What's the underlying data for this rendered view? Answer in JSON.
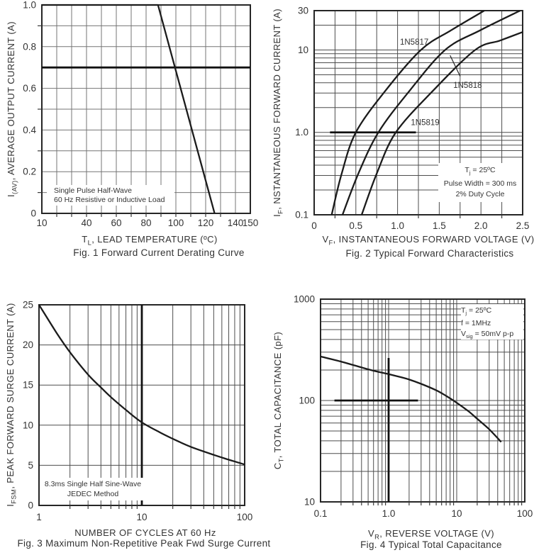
{
  "page": {
    "colors": {
      "background": "#ffffff",
      "curve": "#1b1b1b",
      "border": "#262626",
      "grid_dark": "#4d4d4d",
      "grid_light": "#757575",
      "text": "#333333",
      "emphasis": "#111111"
    }
  },
  "chart_data": [
    {
      "id": "fig1",
      "type": "line",
      "title": "Fig. 1  Forward Current Derating Curve",
      "xlabel": "T_{L}, LEAD TEMPERATURE (ºC)",
      "ylabel": "I_{(AV)}, AVERAGE OUTPUT CURRENT (A)",
      "x_scale": "linear",
      "xlim": [
        10,
        150
      ],
      "y_scale": "linear",
      "ylim": [
        0,
        1.0
      ],
      "x_ticks": [
        [
          10,
          "10"
        ],
        [
          40,
          "40"
        ],
        [
          60,
          "60"
        ],
        [
          80,
          "80"
        ],
        [
          100,
          "100"
        ],
        [
          120,
          "120"
        ],
        [
          140,
          "140"
        ],
        [
          150,
          "150"
        ]
      ],
      "y_ticks": [
        [
          0,
          "0"
        ],
        [
          0.2,
          "0.2"
        ],
        [
          0.4,
          "0.4"
        ],
        [
          0.6,
          "0.6"
        ],
        [
          0.8,
          "0.8"
        ],
        [
          1.0,
          "1.0"
        ]
      ],
      "x_grid": [
        20,
        30,
        40,
        50,
        60,
        70,
        80,
        90,
        100,
        110,
        120,
        130,
        140
      ],
      "y_grid": [
        0.1,
        0.2,
        0.3,
        0.4,
        0.5,
        0.6,
        0.7,
        0.8,
        0.9
      ],
      "x_minor_ticks": [
        20,
        30,
        40,
        50,
        60,
        70,
        80,
        90,
        100,
        110,
        120,
        130
      ],
      "y_minor_ticks": [
        0.1,
        0.3,
        0.5,
        0.9
      ],
      "grid_shade": "light",
      "series": [
        {
          "name": "derating-curve",
          "smooth": false,
          "points": [
            [
              10,
              1.0
            ],
            [
              88,
              1.0
            ],
            [
              126,
              0
            ]
          ]
        }
      ],
      "emphasis": [
        {
          "dir": "h",
          "at": 0.7,
          "span": [
            10,
            150
          ]
        }
      ],
      "note": {
        "lines": [
          "Single Pulse Half-Wave",
          "60 Hz Resistive or Inductive Load"
        ]
      }
    },
    {
      "id": "fig2",
      "type": "line",
      "title": "Fig. 2  Typical Forward Characteristics",
      "xlabel": "V_{F}, INSTANTANEOUS FORWARD VOLTAGE (V)",
      "ylabel": "I_{F}, NSTANTANEOUS FORWARD CURRENT (A)",
      "x_scale": "linear",
      "xlim": [
        0,
        2.5
      ],
      "y_scale": "log",
      "ylim": [
        0.1,
        30
      ],
      "x_ticks": [
        [
          0,
          "0"
        ],
        [
          0.5,
          "0.5"
        ],
        [
          1.0,
          "1.0"
        ],
        [
          1.5,
          "1.5"
        ],
        [
          2.0,
          "2.0"
        ],
        [
          2.5,
          "2.5"
        ]
      ],
      "y_ticks": [
        [
          30,
          "30"
        ],
        [
          10,
          "10"
        ],
        [
          1.0,
          "1.0"
        ],
        [
          0.1,
          "0.1"
        ]
      ],
      "x_grid": [
        0.25,
        0.5,
        0.75,
        1.0,
        1.25,
        1.5,
        1.75,
        2.0,
        2.25
      ],
      "y_grid": [
        0.2,
        0.3,
        0.4,
        0.5,
        0.6,
        0.7,
        0.8,
        0.9,
        1,
        2,
        3,
        4,
        5,
        6,
        7,
        8,
        9,
        10,
        20
      ],
      "x_minor_ticks": [
        0.25,
        0.75,
        1.25,
        1.75,
        2.25
      ],
      "y_minor_ticks": [],
      "grid_shade": "dark",
      "series": [
        {
          "name": "1N5817",
          "points": [
            [
              0.21,
              0.1
            ],
            [
              0.33,
              0.316
            ],
            [
              0.5,
              1.0
            ],
            [
              0.85,
              3.16
            ],
            [
              1.28,
              10
            ],
            [
              1.64,
              17.3
            ],
            [
              2.04,
              30
            ]
          ]
        },
        {
          "name": "1N5818",
          "points": [
            [
              0.34,
              0.1
            ],
            [
              0.53,
              0.316
            ],
            [
              0.77,
              1.0
            ],
            [
              1.14,
              3.16
            ],
            [
              1.57,
              10
            ],
            [
              1.99,
              17.3
            ],
            [
              2.47,
              30
            ]
          ]
        },
        {
          "name": "1N5819",
          "points": [
            [
              0.57,
              0.1
            ],
            [
              0.75,
              0.316
            ],
            [
              0.98,
              1.0
            ],
            [
              1.42,
              3.16
            ],
            [
              1.93,
              10
            ],
            [
              2.23,
              13
            ],
            [
              2.5,
              16.5
            ]
          ]
        }
      ],
      "labels": [
        {
          "text": "1N5817",
          "at": [
            1.2,
            12.5
          ],
          "anchor": "middle"
        },
        {
          "text": "1N5818",
          "at": [
            1.84,
            3.75
          ],
          "anchor": "middle",
          "leader": [
            [
              1.63,
              8.6
            ],
            [
              1.75,
              4.8
            ]
          ]
        },
        {
          "text": "1N5819",
          "at": [
            1.16,
            1.33
          ],
          "anchor": "start"
        }
      ],
      "emphasis": [
        {
          "dir": "h",
          "at": 1.0,
          "span": [
            0.19,
            1.22
          ]
        }
      ],
      "note": {
        "lines": [
          "T_{j} = 25ºC",
          "Pulse Width = 300 ms",
          "2% Duty Cycle"
        ]
      }
    },
    {
      "id": "fig3",
      "type": "line",
      "title": "Fig. 3  Maximum Non-Repetitive Peak Fwd Surge Current",
      "xlabel": "NUMBER OF CYCLES AT 60 Hz",
      "ylabel": "I_{FSM}, PEAK FORWARD SURGE CURRENT (A)",
      "x_scale": "log",
      "xlim": [
        1,
        100
      ],
      "y_scale": "linear",
      "ylim": [
        0,
        25
      ],
      "x_ticks": [
        [
          1,
          "1"
        ],
        [
          10,
          "10"
        ],
        [
          100,
          "100"
        ]
      ],
      "y_ticks": [
        [
          0,
          "0"
        ],
        [
          5,
          "5"
        ],
        [
          10,
          "10"
        ],
        [
          15,
          "15"
        ],
        [
          20,
          "20"
        ],
        [
          25,
          "25"
        ]
      ],
      "x_grid": [
        2,
        3,
        4,
        5,
        6,
        7,
        8,
        9,
        10,
        20,
        30,
        40,
        50,
        60,
        70,
        80,
        90
      ],
      "y_grid": [
        5,
        10,
        15,
        20
      ],
      "x_minor_ticks": [
        2,
        3,
        4,
        5,
        6,
        7,
        8,
        9,
        20,
        30,
        40,
        50,
        60,
        70,
        80,
        90
      ],
      "y_minor_ticks": [],
      "grid_shade": "dark",
      "series": [
        {
          "name": "surge-current",
          "points": [
            [
              1,
              25
            ],
            [
              1.5,
              21.4
            ],
            [
              2,
              19.1
            ],
            [
              3,
              16.3
            ],
            [
              4,
              14.7
            ],
            [
              5,
              13.5
            ],
            [
              7,
              11.9
            ],
            [
              10,
              10.35
            ],
            [
              15,
              9.1
            ],
            [
              20,
              8.3
            ],
            [
              30,
              7.3
            ],
            [
              50,
              6.3
            ],
            [
              70,
              5.7
            ],
            [
              100,
              5.1
            ]
          ]
        }
      ],
      "emphasis": [
        {
          "dir": "v",
          "at": 10,
          "span": [
            0,
            25
          ]
        }
      ],
      "note": {
        "lines": [
          "8.3ms Single Half Sine-Wave",
          "JEDEC Method"
        ]
      }
    },
    {
      "id": "fig4",
      "type": "line",
      "title": "Fig. 4  Typical Total Capacitance",
      "xlabel": "V_{R}, REVERSE VOLTAGE (V)",
      "ylabel": "C_{T}, TOTAL CAPACITANCE (pF)",
      "x_scale": "log",
      "xlim": [
        0.1,
        100
      ],
      "y_scale": "log",
      "ylim": [
        10,
        1000
      ],
      "x_ticks": [
        [
          0.1,
          "0.1"
        ],
        [
          1.0,
          "1.0"
        ],
        [
          10,
          "10"
        ],
        [
          100,
          "100"
        ]
      ],
      "y_ticks": [
        [
          10,
          "10"
        ],
        [
          100,
          "100"
        ],
        [
          1000,
          "1000"
        ]
      ],
      "x_grid": [
        0.2,
        0.3,
        0.4,
        0.5,
        0.6,
        0.7,
        0.8,
        0.9,
        1,
        2,
        3,
        4,
        5,
        6,
        7,
        8,
        9,
        10,
        20,
        30,
        40,
        50,
        60,
        70,
        80,
        90
      ],
      "y_grid": [
        20,
        30,
        40,
        50,
        60,
        70,
        80,
        90,
        100,
        200,
        300,
        400,
        500,
        600,
        700,
        800,
        900
      ],
      "x_minor_ticks": [
        0.2,
        0.3,
        0.4,
        0.5,
        0.6,
        0.7,
        0.8,
        0.9,
        2,
        3,
        4,
        5,
        6,
        7,
        8,
        9,
        20,
        30,
        40,
        50,
        60,
        70,
        80,
        90
      ],
      "y_minor_ticks": [],
      "grid_shade": "dark",
      "series": [
        {
          "name": "total-capacitance",
          "points": [
            [
              0.1,
              272
            ],
            [
              0.2,
              242
            ],
            [
              0.3,
              224
            ],
            [
              0.5,
              203
            ],
            [
              0.7,
              192
            ],
            [
              1,
              182
            ],
            [
              1.5,
              170
            ],
            [
              2,
              161
            ],
            [
              3,
              146
            ],
            [
              5,
              126
            ],
            [
              7,
              111
            ],
            [
              10,
              95
            ],
            [
              15,
              78
            ],
            [
              20,
              66
            ],
            [
              30,
              52
            ],
            [
              45,
              39
            ]
          ]
        }
      ],
      "emphasis": [
        {
          "dir": "h",
          "at": 100,
          "span": [
            0.16,
            2.7
          ]
        },
        {
          "dir": "v",
          "at": 1.0,
          "span": [
            10,
            263
          ]
        }
      ],
      "note": {
        "lines": [
          "T_{j} = 25ºC",
          "f  =  1MHz",
          "V_{sig} = 50mV p-p"
        ]
      }
    }
  ]
}
